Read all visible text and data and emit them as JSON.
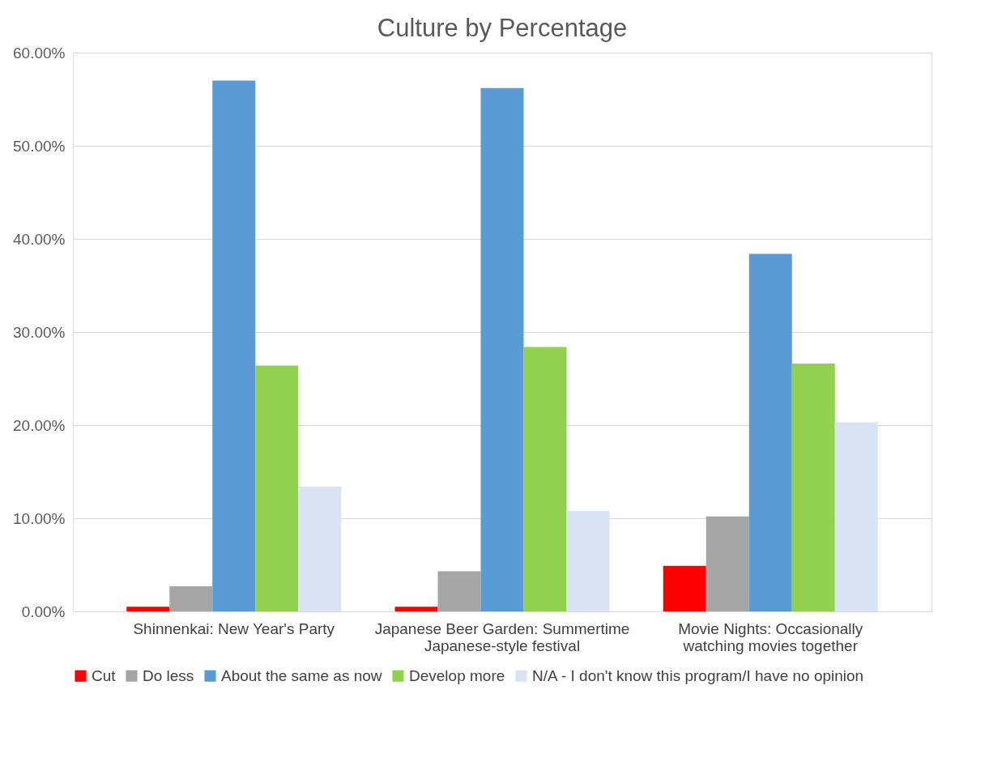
{
  "chart_data": {
    "type": "bar",
    "title": "Culture by Percentage",
    "categories": [
      "Shinnenkai: New Year's Party",
      "Japanese Beer Garden: Summertime Japanese-style festival",
      "Movie Nights: Occasionally watching movies together"
    ],
    "series": [
      {
        "name": "Cut",
        "color": "#ff0000",
        "values": [
          0.5,
          0.5,
          4.9
        ]
      },
      {
        "name": "Do less",
        "color": "#a5a5a5",
        "values": [
          2.7,
          4.3,
          10.2
        ]
      },
      {
        "name": "About the same as now",
        "color": "#5b9bd5",
        "values": [
          57.0,
          56.2,
          38.4
        ]
      },
      {
        "name": "Develop more",
        "color": "#92d050",
        "values": [
          26.4,
          28.4,
          26.6
        ]
      },
      {
        "name": "N/A - I don't know this program/I have no opinion",
        "color": "#dae3f3",
        "values": [
          13.4,
          10.8,
          20.3
        ]
      }
    ],
    "ylim": [
      0,
      60
    ],
    "yticks": [
      {
        "value": 0,
        "label": "0.00%"
      },
      {
        "value": 10,
        "label": "10.00%"
      },
      {
        "value": 20,
        "label": "20.00%"
      },
      {
        "value": 30,
        "label": "30.00%"
      },
      {
        "value": 40,
        "label": "40.00%"
      },
      {
        "value": 50,
        "label": "50.00%"
      },
      {
        "value": 60,
        "label": "60.00%"
      }
    ],
    "grid": "y",
    "legend": "bottom"
  }
}
